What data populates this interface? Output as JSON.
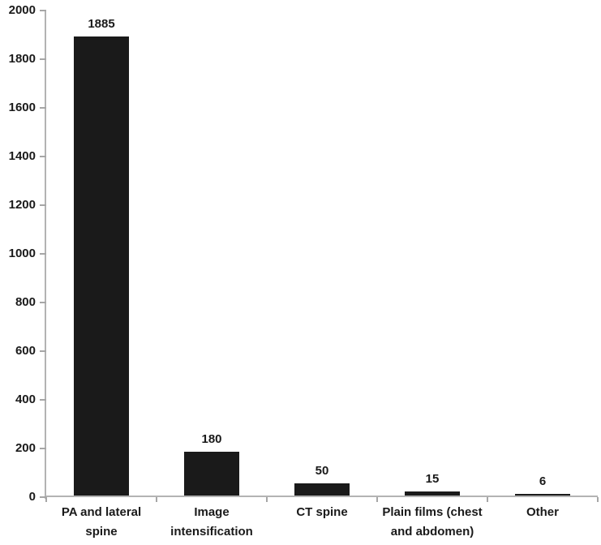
{
  "chart_data": {
    "type": "bar",
    "title": "",
    "xlabel": "",
    "ylabel": "",
    "categories": [
      "PA and lateral spine",
      "Image intensification",
      "CT spine",
      "Plain films (chest and abdomen)",
      "Other"
    ],
    "values": [
      1885,
      180,
      50,
      15,
      6
    ],
    "value_labels": [
      "1885",
      "180",
      "50",
      "15",
      "6"
    ],
    "ylim": [
      0,
      2000
    ],
    "ytick_interval": 200,
    "yticks": [
      "0",
      "200",
      "400",
      "600",
      "800",
      "1000",
      "1200",
      "1400",
      "1600",
      "1800",
      "2000"
    ],
    "grid": false,
    "legend": null,
    "colors": {
      "bar": "#1a1a1a",
      "axis": "#b3b3b3",
      "tick": "#a6a6a6",
      "text": "#1a1a1a",
      "background": "#ffffff"
    }
  }
}
